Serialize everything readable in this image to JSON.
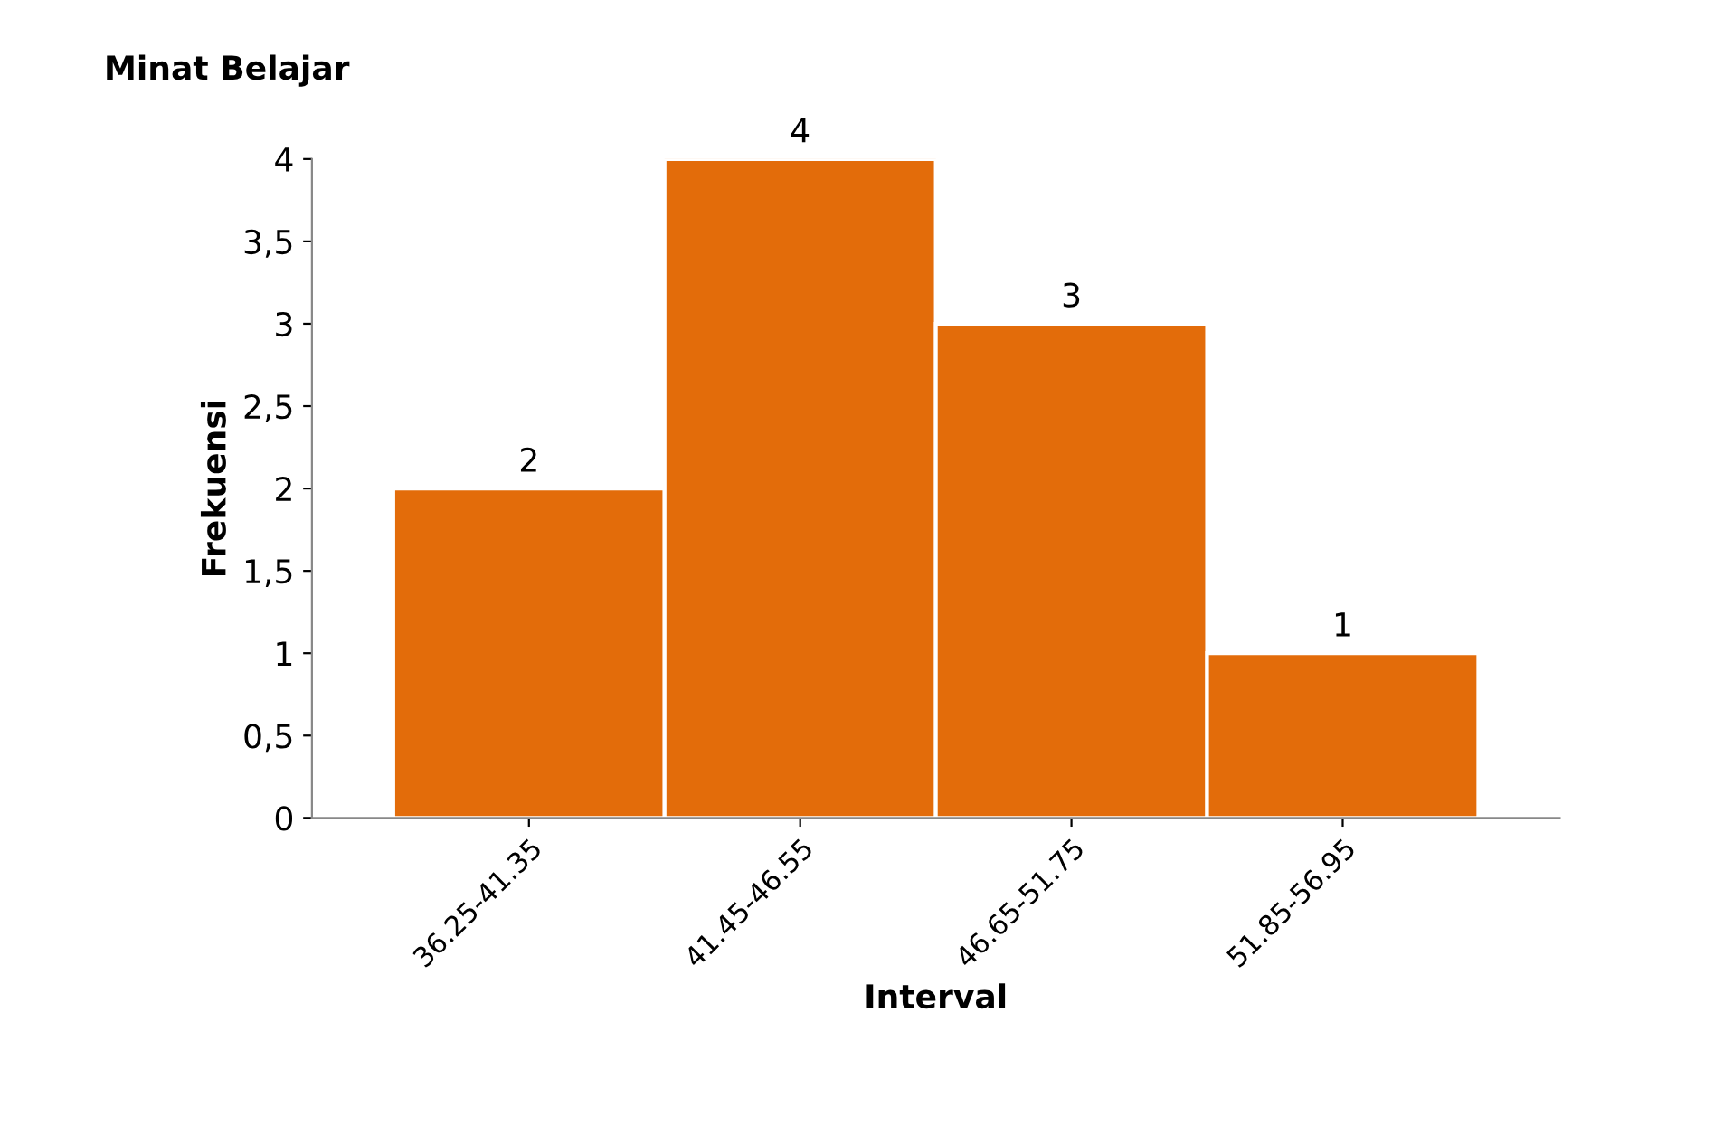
{
  "chart_data": {
    "type": "bar",
    "title": "Minat Belajar",
    "xlabel": "Interval",
    "ylabel": "Frekuensi",
    "categories": [
      "36.25-41.35",
      "41.45-46.55",
      "46.65-51.75",
      "51.85-56.95"
    ],
    "values": [
      2,
      4,
      3,
      1
    ],
    "color": "#e36c0a",
    "ylim": [
      0,
      4
    ],
    "yticks": [
      0,
      {
        "value": 0.5,
        "label": "0,5"
      },
      1,
      {
        "value": 1.5,
        "label": "1,5"
      },
      2,
      {
        "value": 2.5,
        "label": "2,5"
      },
      3,
      {
        "value": 3.5,
        "label": "3,5"
      },
      4
    ],
    "data_labels": true,
    "grid": false
  }
}
